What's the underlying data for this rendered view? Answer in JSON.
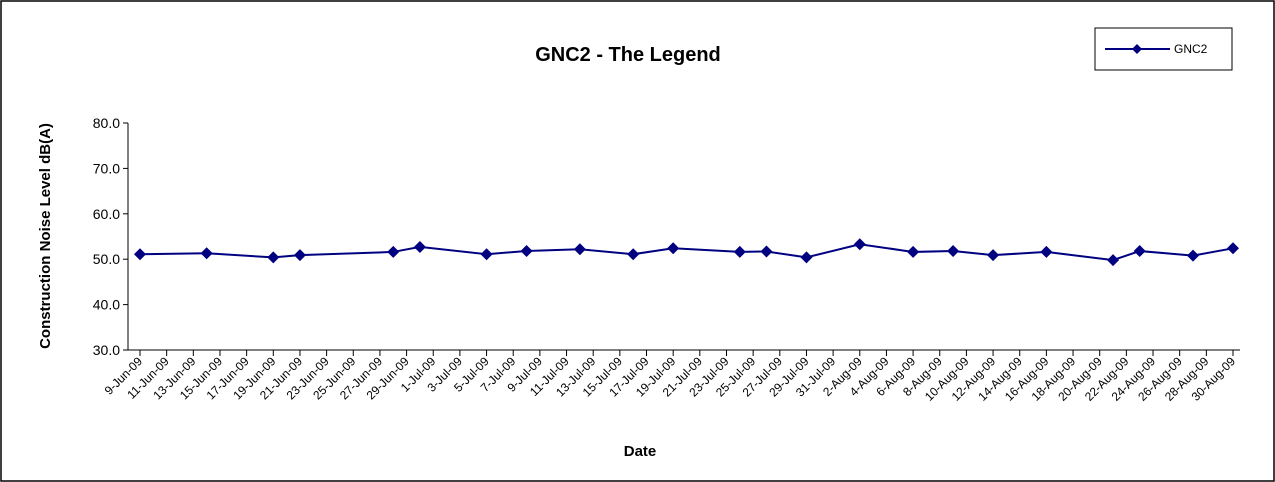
{
  "chart_data": {
    "type": "line",
    "title": "GNC2  - The Legend",
    "x_label": "Date",
    "y_label": "Construction Noise Level  dB(A)",
    "x": [
      "9-Jun-09",
      "14-Jun-09",
      "19-Jun-09",
      "21-Jun-09",
      "28-Jun-09",
      "30-Jun-09",
      "5-Jul-09",
      "8-Jul-09",
      "12-Jul-09",
      "16-Jul-09",
      "19-Jul-09",
      "24-Jul-09",
      "26-Jul-09",
      "29-Jul-09",
      "2-Aug-09",
      "6-Aug-09",
      "9-Aug-09",
      "12-Aug-09",
      "16-Aug-09",
      "21-Aug-09",
      "23-Aug-09",
      "27-Aug-09",
      "30-Aug-09"
    ],
    "series": [
      {
        "name": "GNC2",
        "color": "#000080",
        "values": [
          51.1,
          51.3,
          50.4,
          50.9,
          51.6,
          52.7,
          51.1,
          51.8,
          52.2,
          51.1,
          52.4,
          51.6,
          51.7,
          50.4,
          53.3,
          51.6,
          51.8,
          50.9,
          51.6,
          49.8,
          51.8,
          50.8,
          52.4
        ]
      }
    ],
    "xlim": [
      "9-Jun-09",
      "30-Aug-09"
    ],
    "xticks": [
      "9-Jun-09",
      "11-Jun-09",
      "13-Jun-09",
      "15-Jun-09",
      "17-Jun-09",
      "19-Jun-09",
      "21-Jun-09",
      "23-Jun-09",
      "25-Jun-09",
      "27-Jun-09",
      "29-Jun-09",
      "1-Jul-09",
      "3-Jul-09",
      "5-Jul-09",
      "7-Jul-09",
      "9-Jul-09",
      "11-Jul-09",
      "13-Jul-09",
      "15-Jul-09",
      "17-Jul-09",
      "19-Jul-09",
      "21-Jul-09",
      "23-Jul-09",
      "25-Jul-09",
      "27-Jul-09",
      "29-Jul-09",
      "31-Jul-09",
      "2-Aug-09",
      "4-Aug-09",
      "6-Aug-09",
      "8-Aug-09",
      "10-Aug-09",
      "12-Aug-09",
      "14-Aug-09",
      "16-Aug-09",
      "18-Aug-09",
      "20-Aug-09",
      "22-Aug-09",
      "24-Aug-09",
      "26-Aug-09",
      "28-Aug-09",
      "30-Aug-09"
    ],
    "ylim": [
      30,
      80
    ],
    "yticks": [
      {
        "value": 30,
        "label": "30.0"
      },
      {
        "value": 40,
        "label": "40.0"
      },
      {
        "value": 50,
        "label": "50.0"
      },
      {
        "value": 60,
        "label": "60.0"
      },
      {
        "value": 70,
        "label": "70.0"
      },
      {
        "value": 80,
        "label": "80.0"
      }
    ],
    "legend": "top-right"
  }
}
